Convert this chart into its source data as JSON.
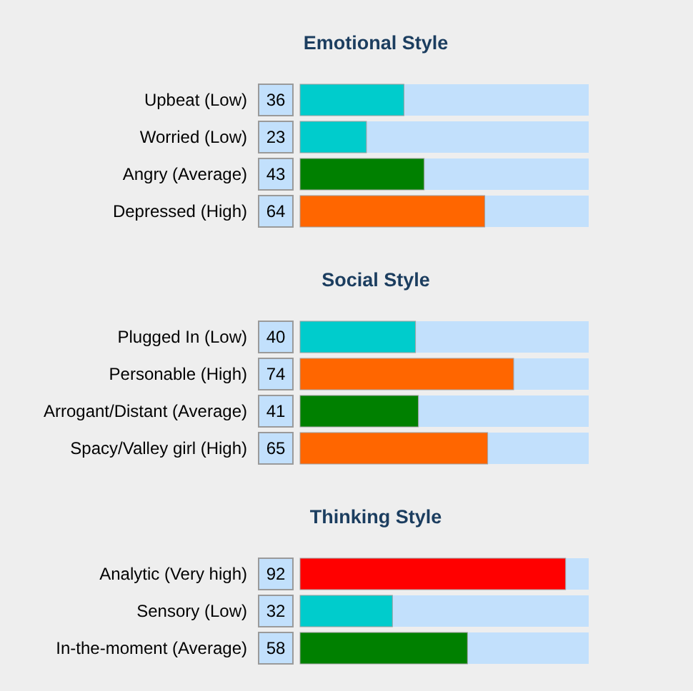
{
  "chart_data": [
    {
      "type": "bar",
      "orientation": "horizontal",
      "title": "Emotional Style",
      "categories": [
        "Upbeat (Low)",
        "Worried (Low)",
        "Angry (Average)",
        "Depressed (High)"
      ],
      "values": [
        36,
        23,
        43,
        64
      ],
      "colors": [
        "#00cccc",
        "#00cccc",
        "#008000",
        "#ff6600"
      ],
      "xlim": [
        0,
        100
      ],
      "bands": [
        {
          "axis": "x",
          "from": 0,
          "to": 100,
          "color": "#c2e0fc"
        }
      ],
      "data_labels": true
    },
    {
      "type": "bar",
      "orientation": "horizontal",
      "title": "Social Style",
      "categories": [
        "Plugged In (Low)",
        "Personable (High)",
        "Arrogant/Distant (Average)",
        "Spacy/Valley girl (High)"
      ],
      "values": [
        40,
        74,
        41,
        65
      ],
      "colors": [
        "#00cccc",
        "#ff6600",
        "#008000",
        "#ff6600"
      ],
      "xlim": [
        0,
        100
      ],
      "bands": [
        {
          "axis": "x",
          "from": 0,
          "to": 100,
          "color": "#c2e0fc"
        }
      ],
      "data_labels": true
    },
    {
      "type": "bar",
      "orientation": "horizontal",
      "title": "Thinking Style",
      "categories": [
        "Analytic (Very high)",
        "Sensory (Low)",
        "In-the-moment (Average)"
      ],
      "values": [
        92,
        32,
        58
      ],
      "colors": [
        "#ff0000",
        "#00cccc",
        "#008000"
      ],
      "xlim": [
        0,
        100
      ],
      "bands": [
        {
          "axis": "x",
          "from": 0,
          "to": 100,
          "color": "#c2e0fc"
        }
      ],
      "data_labels": true
    }
  ]
}
